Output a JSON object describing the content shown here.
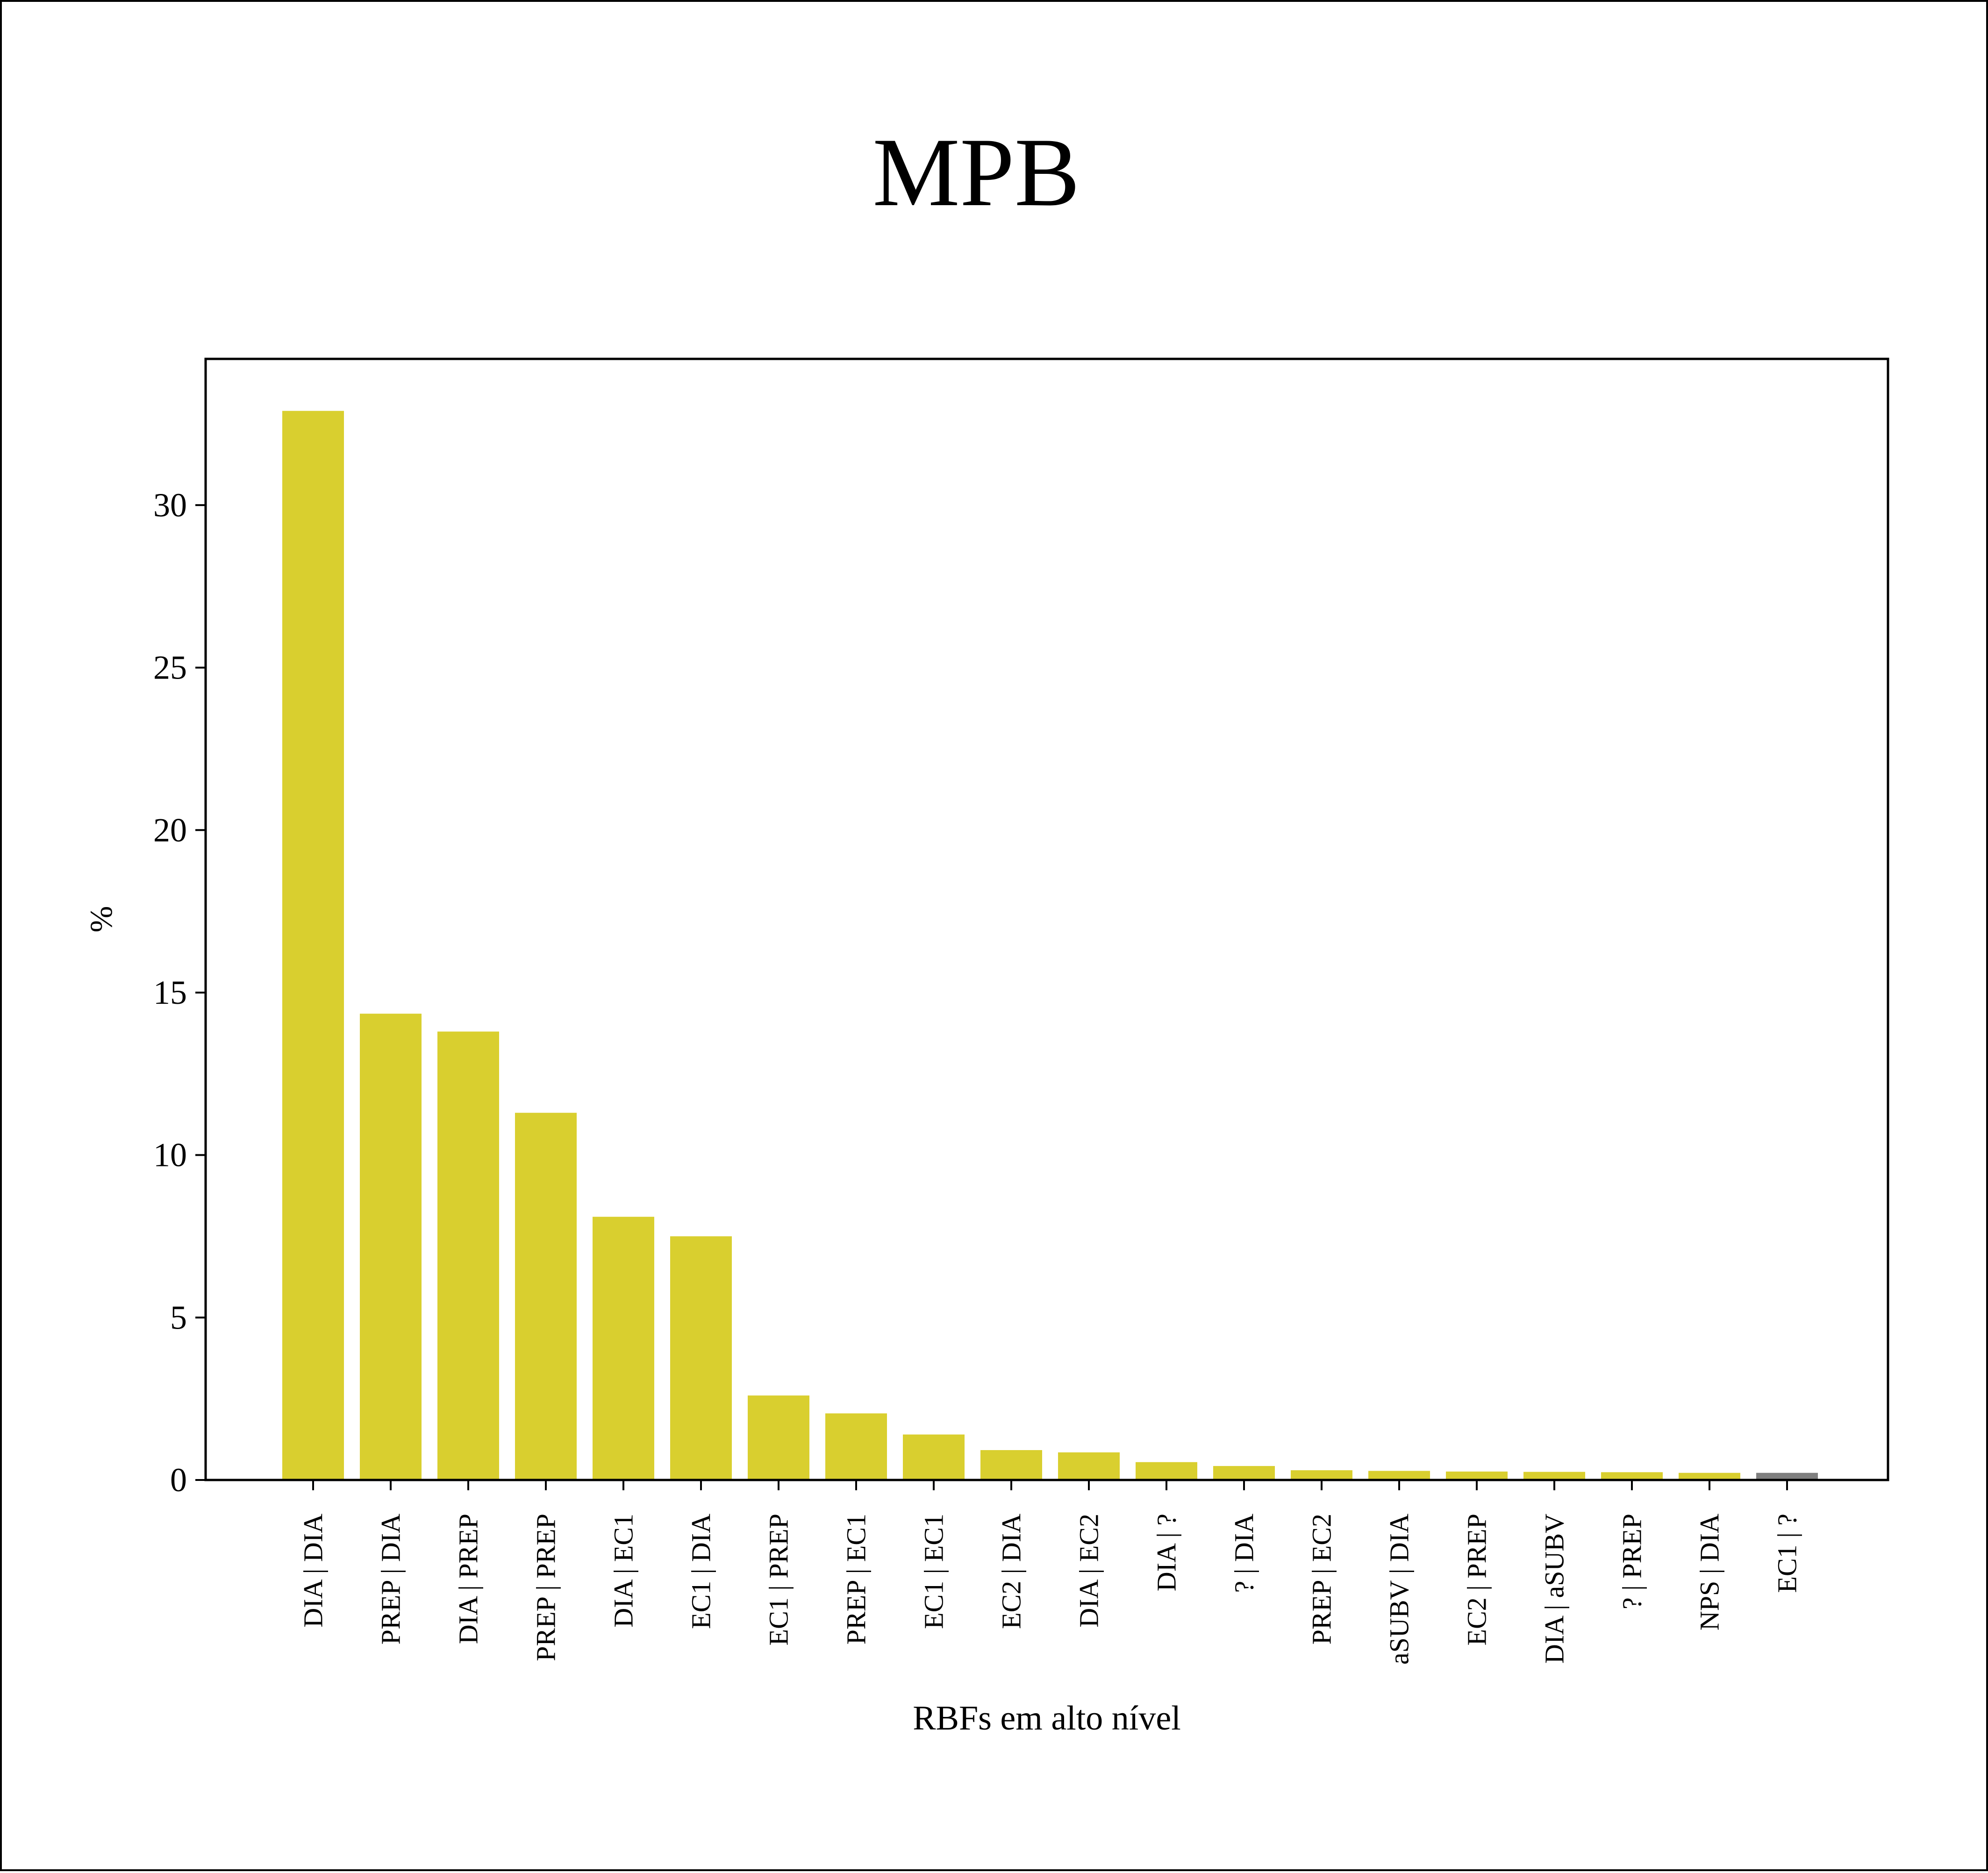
{
  "chart_data": {
    "type": "bar",
    "title": "MPB",
    "xlabel": "RBFs em alto nível",
    "ylabel": "%",
    "ylim": [
      0,
      34.5
    ],
    "yticks": [
      0,
      5,
      10,
      15,
      20,
      25,
      30
    ],
    "grid": false,
    "categories": [
      "DIA | DIA",
      "PREP | DIA",
      "DIA | PREP",
      "PREP | PREP",
      "DIA | EC1",
      "EC1 | DIA",
      "EC1 | PREP",
      "PREP | EC1",
      "EC1 | EC1",
      "EC2 | DIA",
      "DIA | EC2",
      "DIA | ?",
      "? | DIA",
      "PREP | EC2",
      "aSUBV | DIA",
      "EC2 | PREP",
      "DIA | aSUBV",
      "? | PREP",
      "NPS | DIA",
      "EC1 | ?"
    ],
    "values": [
      32.9,
      14.35,
      13.8,
      11.3,
      8.1,
      7.5,
      2.6,
      2.05,
      1.4,
      0.92,
      0.85,
      0.55,
      0.43,
      0.3,
      0.28,
      0.26,
      0.25,
      0.24,
      0.22,
      0.22
    ],
    "bar_colors": [
      "#d9cf2f",
      "#d9cf2f",
      "#d9cf2f",
      "#d9cf2f",
      "#d9cf2f",
      "#d9cf2f",
      "#d9cf2f",
      "#d9cf2f",
      "#d9cf2f",
      "#d9cf2f",
      "#d9cf2f",
      "#d9cf2f",
      "#d9cf2f",
      "#d9cf2f",
      "#d9cf2f",
      "#d9cf2f",
      "#d9cf2f",
      "#d9cf2f",
      "#d9cf2f",
      "#7f7f7f"
    ],
    "title_color": "#1c2896"
  }
}
